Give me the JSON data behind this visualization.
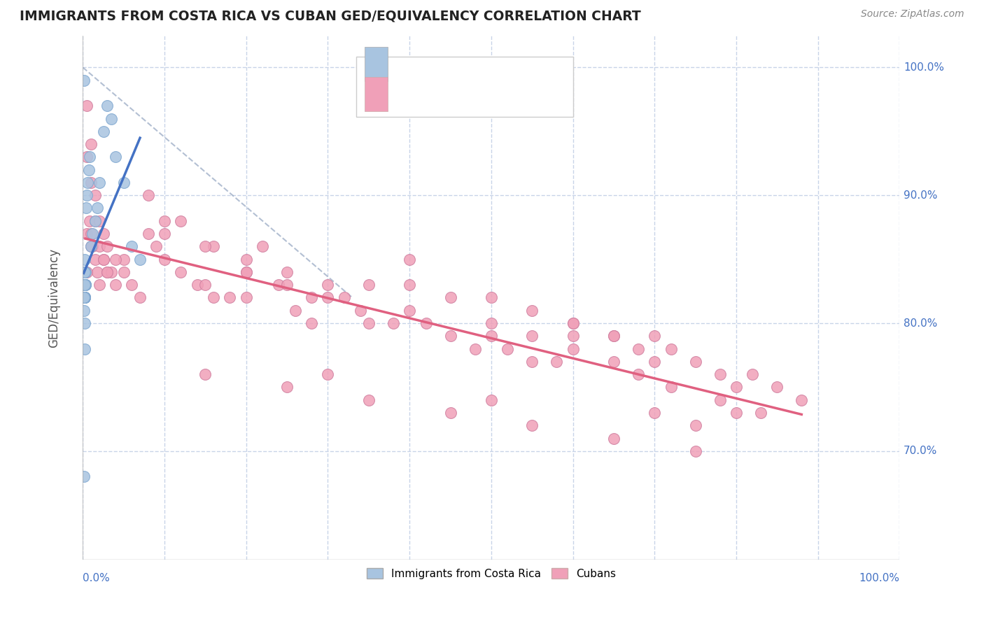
{
  "title": "IMMIGRANTS FROM COSTA RICA VS CUBAN GED/EQUIVALENCY CORRELATION CHART",
  "source": "Source: ZipAtlas.com",
  "ylabel": "GED/Equivalency",
  "ytick_vals": [
    0.7,
    0.8,
    0.9,
    1.0
  ],
  "ytick_labels": [
    "70.0%",
    "80.0%",
    "90.0%",
    "100.0%"
  ],
  "xlim": [
    0.0,
    1.0
  ],
  "ylim": [
    0.615,
    1.025
  ],
  "blue_color": "#a8c4e0",
  "pink_color": "#f0a0b8",
  "blue_line_color": "#4472c4",
  "pink_line_color": "#e06080",
  "gray_dash_color": "#a0b0c8",
  "text_blue": "#4472c4",
  "background": "#ffffff",
  "grid_color": "#c8d4e8",
  "legend_text_color": "#1a3a6e"
}
